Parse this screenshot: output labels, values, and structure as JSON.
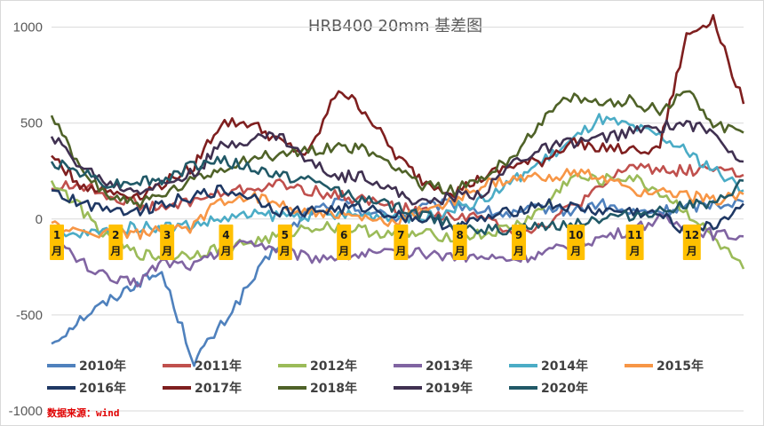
{
  "chart_data": {
    "type": "line",
    "title": "HRB400  20mm  基差图",
    "xlabel": "",
    "ylabel": "",
    "ylim": [
      -1000,
      1100
    ],
    "yticks": [
      1000,
      500,
      0,
      -500,
      -1000
    ],
    "grid": true,
    "legend_position": "bottom",
    "month_markers": [
      {
        "label": "1\n月",
        "day": 0
      },
      {
        "label": "2\n月",
        "day": 31
      },
      {
        "label": "3\n月",
        "day": 58
      },
      {
        "label": "4\n月",
        "day": 89
      },
      {
        "label": "5\n月",
        "day": 120
      },
      {
        "label": "6\n月",
        "day": 151
      },
      {
        "label": "7\n月",
        "day": 181
      },
      {
        "label": "8\n月",
        "day": 212
      },
      {
        "label": "9\n月",
        "day": 243
      },
      {
        "label": "10\n月",
        "day": 273
      },
      {
        "label": "11\n月",
        "day": 304
      },
      {
        "label": "12\n月",
        "day": 334
      }
    ],
    "x": [
      0,
      15,
      31,
      45,
      58,
      75,
      89,
      105,
      120,
      135,
      151,
      165,
      181,
      195,
      212,
      228,
      243,
      258,
      273,
      288,
      304,
      320,
      334,
      348,
      364
    ],
    "series": [
      {
        "name": "2010年",
        "color": "#4f81bd",
        "values": [
          -650,
          -520,
          -420,
          -330,
          -280,
          -740,
          -560,
          -330,
          -120,
          40,
          90,
          40,
          10,
          60,
          80,
          40,
          20,
          60,
          40,
          80,
          30,
          40,
          60,
          80,
          90
        ]
      },
      {
        "name": "2011年",
        "color": "#c0504d",
        "values": [
          160,
          180,
          120,
          80,
          50,
          100,
          130,
          160,
          180,
          150,
          120,
          100,
          60,
          40,
          20,
          0,
          -60,
          -40,
          60,
          150,
          280,
          260,
          250,
          270,
          230
        ]
      },
      {
        "name": "2012年",
        "color": "#9bbb59",
        "values": [
          200,
          60,
          -120,
          -180,
          -200,
          -180,
          -150,
          -120,
          -90,
          -40,
          -40,
          -60,
          -80,
          -80,
          -90,
          -80,
          -40,
          50,
          220,
          200,
          220,
          140,
          40,
          -100,
          -260
        ]
      },
      {
        "name": "2013年",
        "color": "#8064a2",
        "values": [
          -100,
          -220,
          -320,
          -330,
          -220,
          -240,
          -170,
          -110,
          -160,
          -200,
          -190,
          -180,
          -180,
          -180,
          -190,
          -200,
          -210,
          -180,
          -140,
          -100,
          -60,
          0,
          -40,
          -80,
          -90
        ]
      },
      {
        "name": "2014年",
        "color": "#4bacc6",
        "values": [
          -100,
          -80,
          -60,
          -40,
          -40,
          -30,
          0,
          20,
          20,
          20,
          20,
          20,
          20,
          0,
          60,
          100,
          200,
          300,
          400,
          520,
          480,
          430,
          350,
          260,
          150
        ]
      },
      {
        "name": "2015年",
        "color": "#f79646",
        "values": [
          -20,
          -80,
          -60,
          -80,
          -60,
          -40,
          100,
          120,
          80,
          40,
          20,
          0,
          -20,
          50,
          100,
          180,
          200,
          220,
          240,
          220,
          150,
          140,
          120,
          100,
          130
        ]
      },
      {
        "name": "2016年",
        "color": "#1f3864",
        "values": [
          150,
          80,
          60,
          40,
          80,
          120,
          150,
          120,
          40,
          40,
          50,
          60,
          20,
          0,
          -40,
          0,
          40,
          80,
          60,
          40,
          40,
          20,
          -60,
          -40,
          80
        ]
      },
      {
        "name": "2017年",
        "color": "#7f1f1f",
        "values": [
          330,
          180,
          140,
          120,
          180,
          280,
          500,
          500,
          400,
          330,
          680,
          560,
          330,
          200,
          140,
          220,
          280,
          300,
          400,
          380,
          350,
          380,
          950,
          1050,
          600
        ]
      },
      {
        "name": "2018年",
        "color": "#4f6228",
        "values": [
          540,
          260,
          120,
          80,
          120,
          200,
          260,
          320,
          330,
          360,
          380,
          360,
          280,
          180,
          150,
          220,
          330,
          520,
          630,
          600,
          620,
          560,
          680,
          500,
          450
        ]
      },
      {
        "name": "2019年",
        "color": "#403151",
        "values": [
          430,
          280,
          180,
          150,
          180,
          240,
          380,
          420,
          440,
          300,
          220,
          230,
          140,
          80,
          120,
          140,
          300,
          360,
          400,
          420,
          450,
          480,
          500,
          450,
          300
        ]
      },
      {
        "name": "2020年",
        "color": "#215967",
        "values": [
          300,
          250,
          180,
          200,
          200,
          280,
          310,
          260,
          230,
          200,
          150,
          100,
          60,
          20,
          -20,
          -60,
          -60,
          -40,
          -20,
          0,
          20,
          40,
          80,
          60,
          200
        ]
      }
    ],
    "source_note": "数据来源：wind"
  }
}
